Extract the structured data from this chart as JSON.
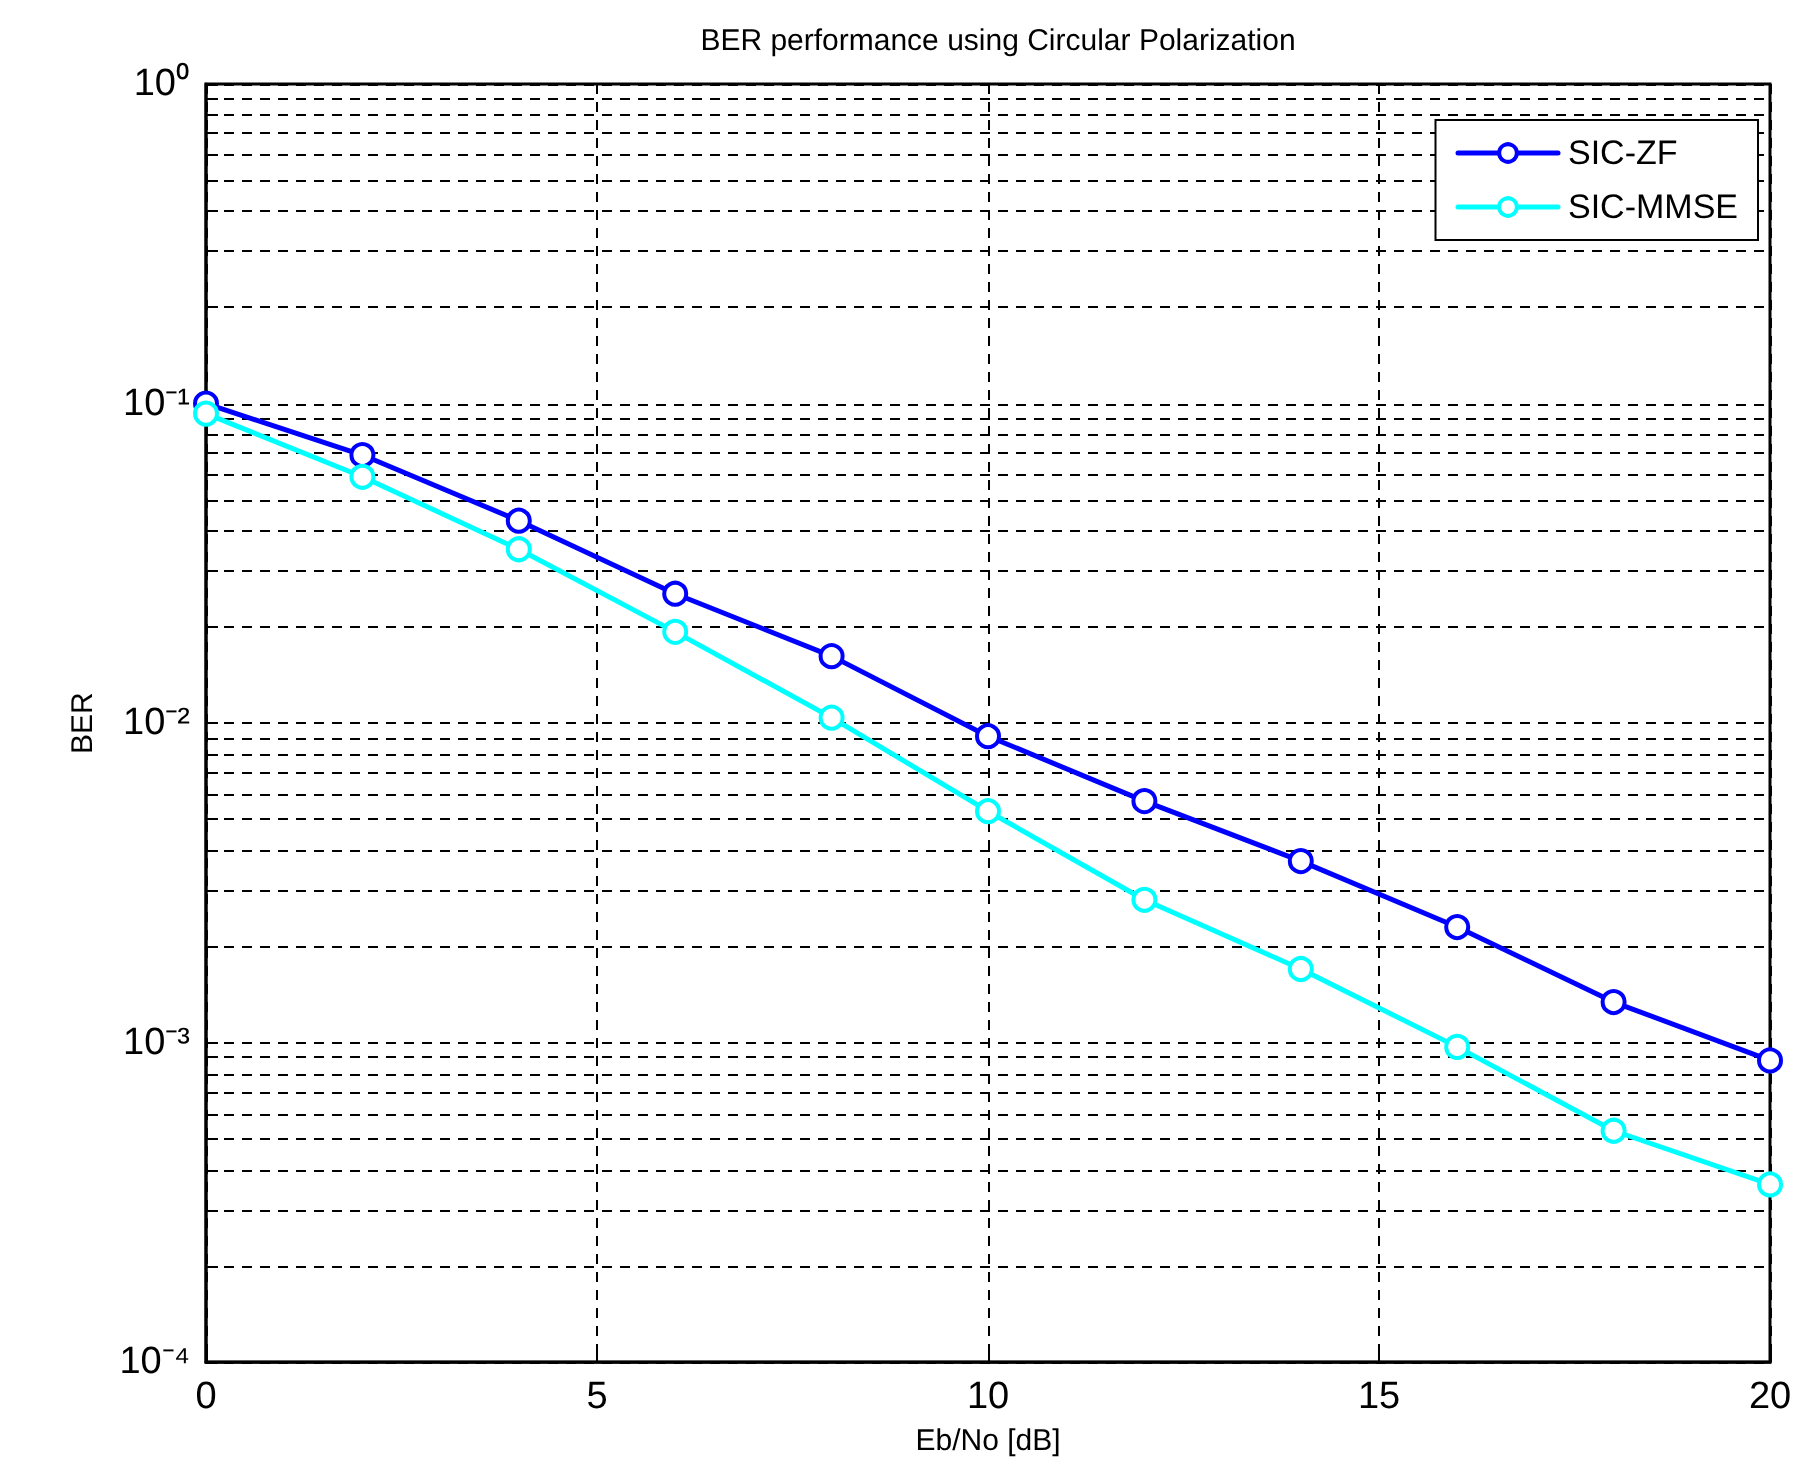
{
  "chart_data": {
    "type": "line",
    "title": "BER performance using Circular Polarization",
    "xlabel": "Eb/No [dB]",
    "ylabel": "BER",
    "x": [
      0,
      2,
      4,
      6,
      8,
      10,
      12,
      14,
      16,
      18,
      20
    ],
    "series": [
      {
        "name": "SIC-ZF",
        "color": "#0000ff",
        "values": [
          0.1,
          0.069,
          0.043,
          0.0254,
          0.0162,
          0.0091,
          0.0057,
          0.0037,
          0.0023,
          0.00134,
          0.00088
        ]
      },
      {
        "name": "SIC-MMSE",
        "color": "#00ffff",
        "values": [
          0.093,
          0.059,
          0.035,
          0.0193,
          0.0104,
          0.0053,
          0.0028,
          0.0017,
          0.00097,
          0.00053,
          0.00036
        ]
      }
    ],
    "xlim": [
      0,
      20
    ],
    "xticks": [
      0,
      5,
      10,
      15,
      20
    ],
    "ylim": [
      0.0001,
      1
    ],
    "log": "y",
    "yticks": [
      {
        "value": 0.0001,
        "label": "10⁻⁴"
      },
      {
        "value": 0.0002,
        "label": null
      },
      {
        "value": 0.0003,
        "label": null
      },
      {
        "value": 0.0004,
        "label": null
      },
      {
        "value": 0.0005,
        "label": null
      },
      {
        "value": 0.0006,
        "label": null
      },
      {
        "value": 0.0007,
        "label": null
      },
      {
        "value": 0.0008,
        "label": null
      },
      {
        "value": 0.0009,
        "label": null
      },
      {
        "value": 0.001,
        "label": "10⁻³"
      },
      {
        "value": 0.002,
        "label": null
      },
      {
        "value": 0.003,
        "label": null
      },
      {
        "value": 0.004,
        "label": null
      },
      {
        "value": 0.005,
        "label": null
      },
      {
        "value": 0.006,
        "label": null
      },
      {
        "value": 0.007,
        "label": null
      },
      {
        "value": 0.008,
        "label": null
      },
      {
        "value": 0.009,
        "label": null
      },
      {
        "value": 0.01,
        "label": "10⁻²"
      },
      {
        "value": 0.02,
        "label": null
      },
      {
        "value": 0.03,
        "label": null
      },
      {
        "value": 0.04,
        "label": null
      },
      {
        "value": 0.05,
        "label": null
      },
      {
        "value": 0.06,
        "label": null
      },
      {
        "value": 0.07,
        "label": null
      },
      {
        "value": 0.08,
        "label": null
      },
      {
        "value": 0.09,
        "label": null
      },
      {
        "value": 0.1,
        "label": "10⁻¹"
      },
      {
        "value": 0.2,
        "label": null
      },
      {
        "value": 0.3,
        "label": null
      },
      {
        "value": 0.4,
        "label": null
      },
      {
        "value": 0.5,
        "label": null
      },
      {
        "value": 0.6,
        "label": null
      },
      {
        "value": 0.7,
        "label": null
      },
      {
        "value": 0.8,
        "label": null
      },
      {
        "value": 0.9,
        "label": null
      },
      {
        "value": 1,
        "label": "10⁰"
      }
    ],
    "grid": true,
    "legend": "top right",
    "marker": "circle",
    "line_style": "solid"
  }
}
